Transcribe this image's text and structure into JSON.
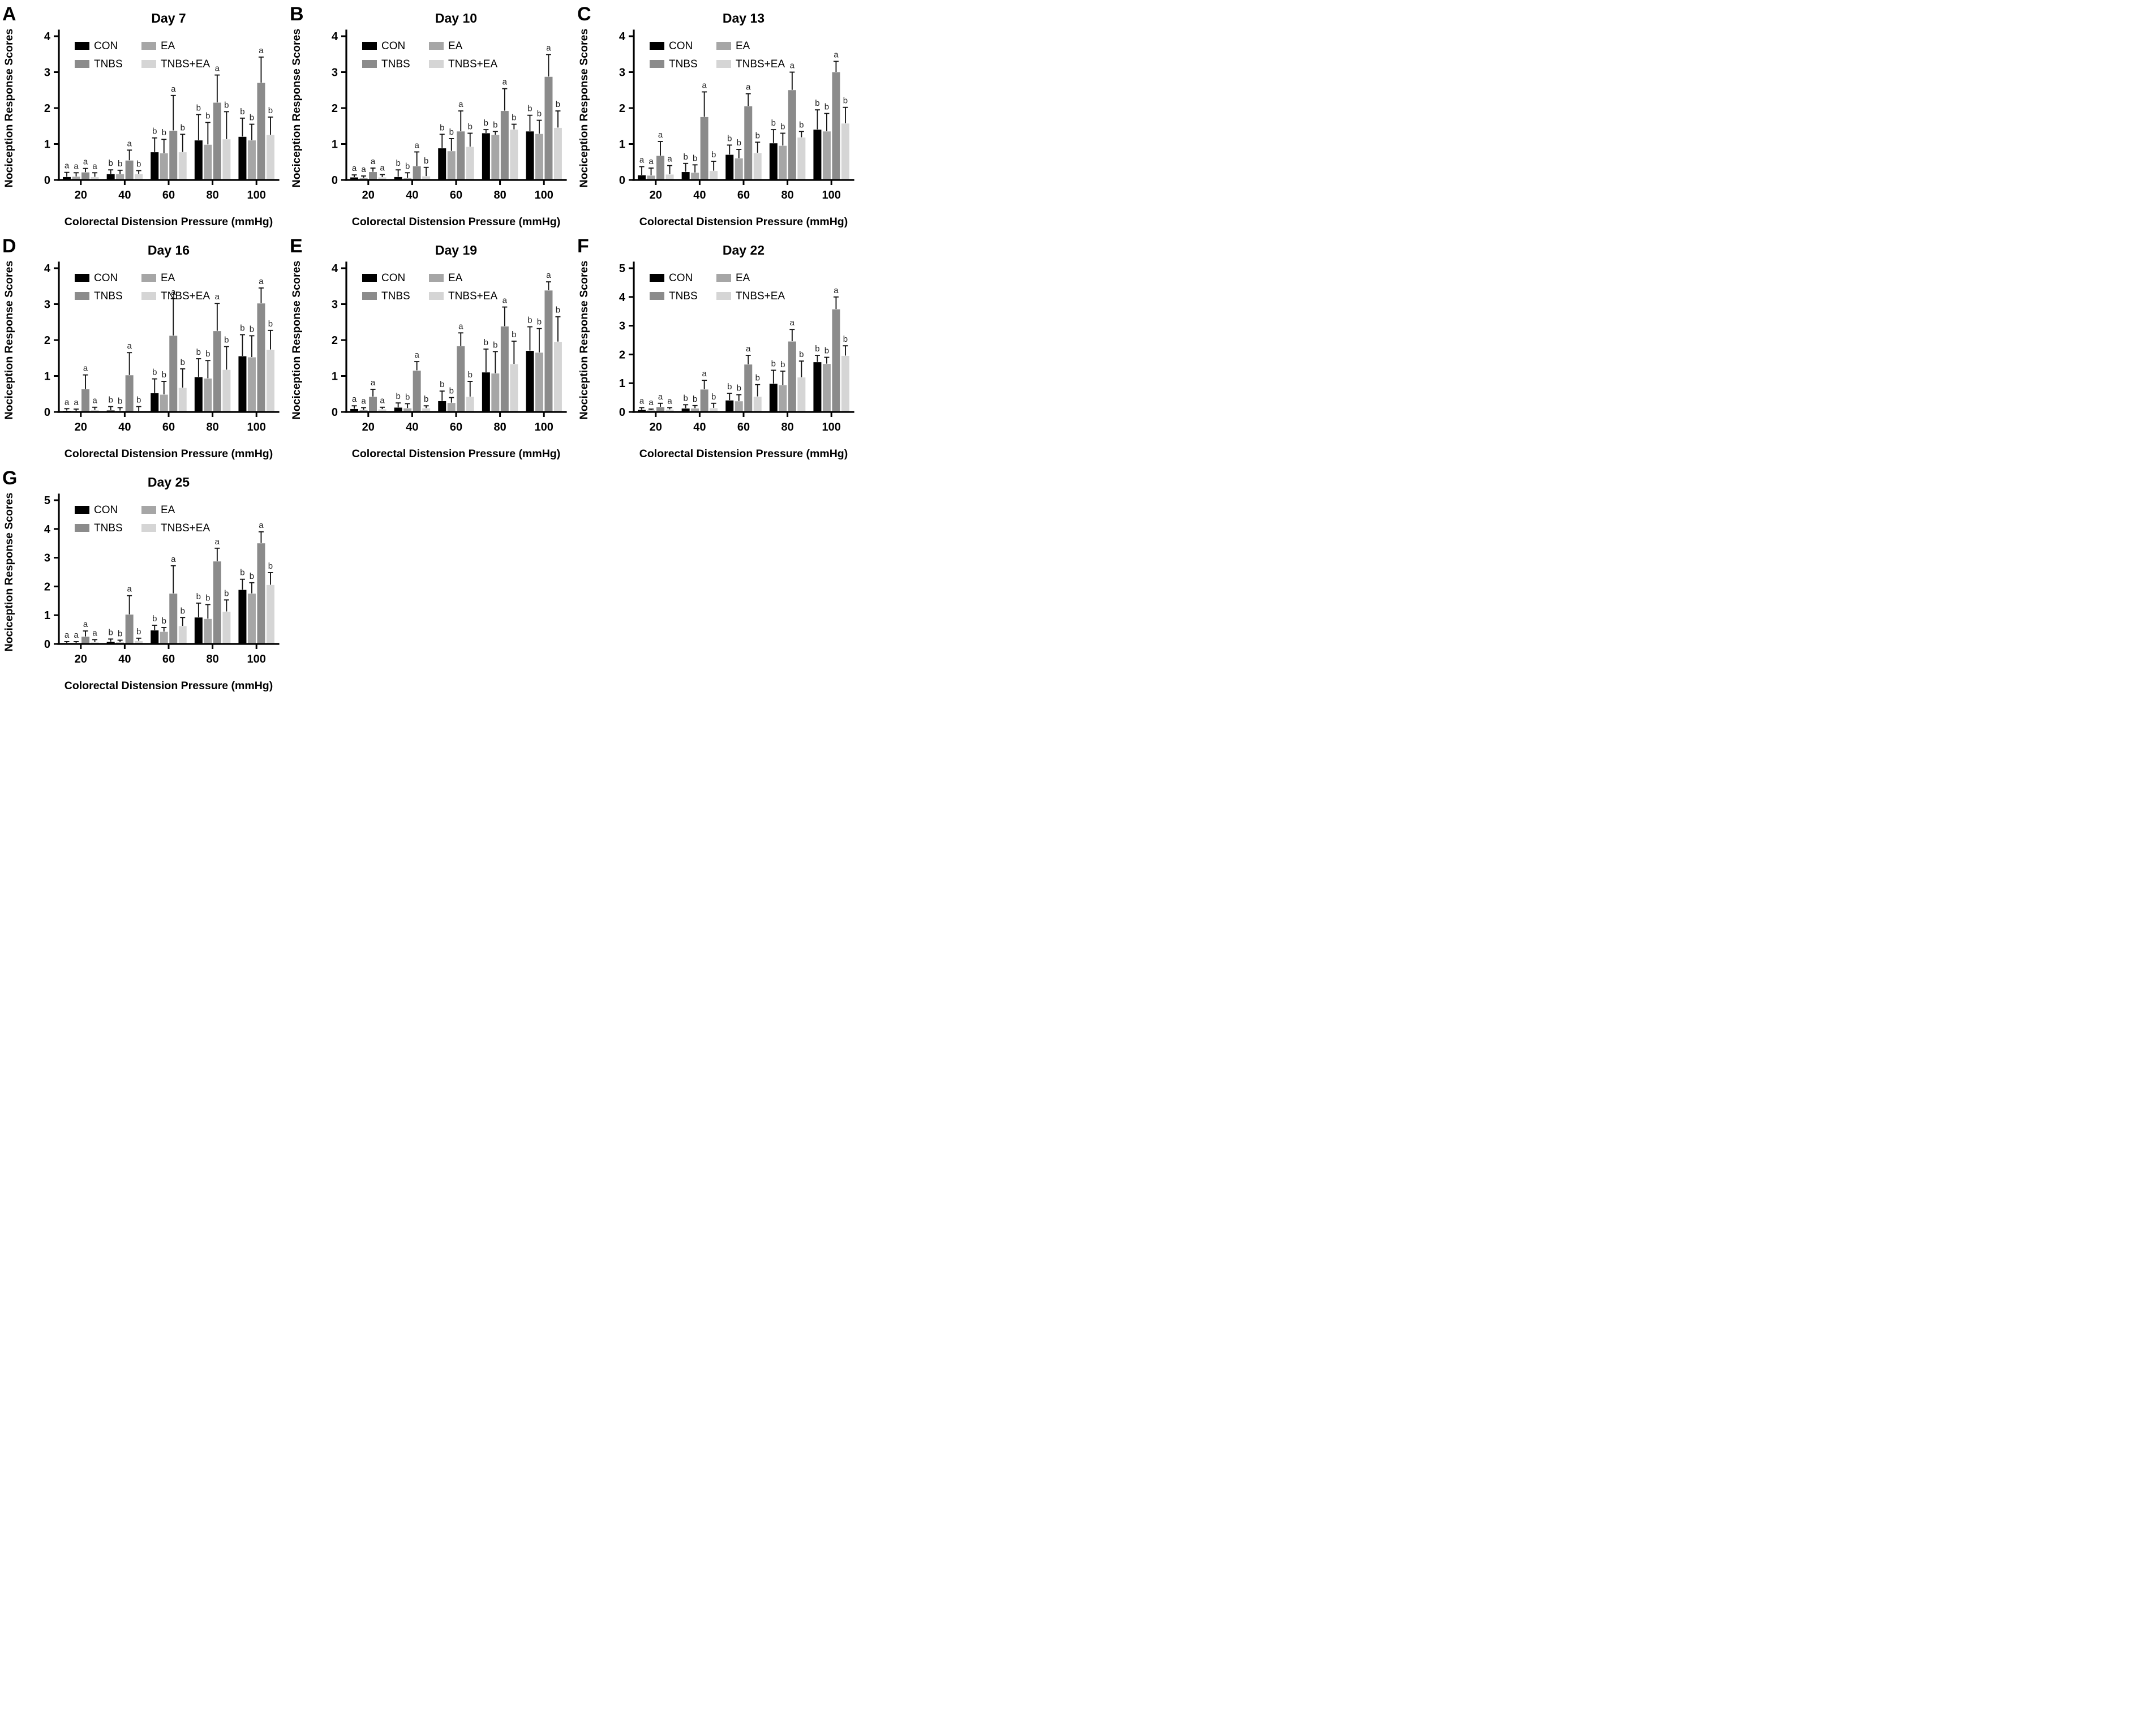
{
  "figure": {
    "ylabel": "Nociception Response Scores",
    "xlabel": "Colorectal Distension Pressure (mmHg)",
    "colors": {
      "CON": "#000000",
      "EA": "#a6a6a6",
      "TNBS": "#8b8b8b",
      "TNBS+EA": "#d5d5d5"
    },
    "legend_rows": [
      [
        "CON",
        "EA"
      ],
      [
        "TNBS",
        "TNBS+EA"
      ]
    ]
  },
  "chart_data": [
    {
      "type": "bar",
      "panel_label": "A",
      "title": "Day 7",
      "xlabel": "Colorectal Distension Pressure (mmHg)",
      "ylabel": "Nociception Response Scores",
      "categories": [
        20,
        40,
        60,
        80,
        100
      ],
      "ylim": [
        0,
        4
      ],
      "yticks": [
        0,
        1,
        2,
        3,
        4
      ],
      "grid": false,
      "legend_position": "top-left-inside",
      "series": [
        {
          "name": "CON",
          "values": [
            0.08,
            0.16,
            0.77,
            1.1,
            1.2
          ],
          "errors": [
            0.13,
            0.12,
            0.4,
            0.72,
            0.52
          ],
          "letters": [
            "a",
            "b",
            "b",
            "b",
            "b"
          ]
        },
        {
          "name": "EA",
          "values": [
            0.09,
            0.16,
            0.74,
            0.98,
            1.1
          ],
          "errors": [
            0.11,
            0.11,
            0.39,
            0.62,
            0.45
          ],
          "letters": [
            "a",
            "b",
            "b",
            "b",
            "b"
          ]
        },
        {
          "name": "TNBS",
          "values": [
            0.21,
            0.54,
            1.37,
            2.15,
            2.7
          ],
          "errors": [
            0.11,
            0.29,
            0.98,
            0.77,
            0.72
          ],
          "letters": [
            "a",
            "a",
            "a",
            "a",
            "a"
          ]
        },
        {
          "name": "TNBS+EA",
          "values": [
            0.08,
            0.16,
            0.77,
            1.13,
            1.25
          ],
          "errors": [
            0.12,
            0.1,
            0.5,
            0.77,
            0.5
          ],
          "letters": [
            "a",
            "b",
            "b",
            "b",
            "b"
          ]
        }
      ]
    },
    {
      "type": "bar",
      "panel_label": "B",
      "title": "Day 10",
      "xlabel": "Colorectal Distension Pressure (mmHg)",
      "ylabel": "Nociception Response Scores",
      "categories": [
        20,
        40,
        60,
        80,
        100
      ],
      "ylim": [
        0,
        4
      ],
      "yticks": [
        0,
        1,
        2,
        3,
        4
      ],
      "grid": false,
      "legend_position": "top-left-inside",
      "series": [
        {
          "name": "CON",
          "values": [
            0.07,
            0.08,
            0.88,
            1.3,
            1.35
          ],
          "errors": [
            0.07,
            0.2,
            0.39,
            0.1,
            0.45
          ],
          "letters": [
            "a",
            "b",
            "b",
            "b",
            "b"
          ]
        },
        {
          "name": "EA",
          "values": [
            0.05,
            0.05,
            0.8,
            1.25,
            1.28
          ],
          "errors": [
            0.06,
            0.15,
            0.35,
            0.1,
            0.38
          ],
          "letters": [
            "a",
            "b",
            "b",
            "b",
            "b"
          ]
        },
        {
          "name": "TNBS",
          "values": [
            0.22,
            0.38,
            1.35,
            1.92,
            2.87
          ],
          "errors": [
            0.11,
            0.4,
            0.57,
            0.62,
            0.62
          ],
          "letters": [
            "a",
            "a",
            "a",
            "a",
            "a"
          ]
        },
        {
          "name": "TNBS+EA",
          "values": [
            0.07,
            0.1,
            0.92,
            1.4,
            1.45
          ],
          "errors": [
            0.08,
            0.25,
            0.38,
            0.15,
            0.47
          ],
          "letters": [
            "a",
            "b",
            "b",
            "b",
            "b"
          ]
        }
      ]
    },
    {
      "type": "bar",
      "panel_label": "C",
      "title": "Day 13",
      "xlabel": "Colorectal Distension Pressure (mmHg)",
      "ylabel": "Nociception Response Scores",
      "categories": [
        20,
        40,
        60,
        80,
        100
      ],
      "ylim": [
        0,
        4
      ],
      "yticks": [
        0,
        1,
        2,
        3,
        4
      ],
      "grid": false,
      "legend_position": "top-left-inside",
      "series": [
        {
          "name": "CON",
          "values": [
            0.13,
            0.22,
            0.7,
            1.02,
            1.4
          ],
          "errors": [
            0.24,
            0.24,
            0.27,
            0.38,
            0.55
          ],
          "letters": [
            "a",
            "b",
            "b",
            "b",
            "b"
          ]
        },
        {
          "name": "EA",
          "values": [
            0.12,
            0.2,
            0.6,
            0.95,
            1.35
          ],
          "errors": [
            0.21,
            0.22,
            0.25,
            0.35,
            0.5
          ],
          "letters": [
            "a",
            "b",
            "b",
            "b",
            "b"
          ]
        },
        {
          "name": "TNBS",
          "values": [
            0.67,
            1.75,
            2.05,
            2.5,
            3.0
          ],
          "errors": [
            0.4,
            0.7,
            0.35,
            0.5,
            0.3
          ],
          "letters": [
            "a",
            "a",
            "a",
            "a",
            "a"
          ]
        },
        {
          "name": "TNBS+EA",
          "values": [
            0.15,
            0.25,
            0.75,
            1.18,
            1.57
          ],
          "errors": [
            0.25,
            0.27,
            0.3,
            0.17,
            0.45
          ],
          "letters": [
            "a",
            "b",
            "b",
            "b",
            "b"
          ]
        }
      ]
    },
    {
      "type": "bar",
      "panel_label": "D",
      "title": "Day 16",
      "xlabel": "Colorectal Distension Pressure (mmHg)",
      "ylabel": "Nociception Response Scores",
      "categories": [
        20,
        40,
        60,
        80,
        100
      ],
      "ylim": [
        0,
        4
      ],
      "yticks": [
        0,
        1,
        2,
        3,
        4
      ],
      "grid": false,
      "legend_position": "top-left-inside",
      "series": [
        {
          "name": "CON",
          "values": [
            0.03,
            0.04,
            0.52,
            0.97,
            1.55
          ],
          "errors": [
            0.06,
            0.11,
            0.4,
            0.51,
            0.6
          ],
          "letters": [
            "a",
            "b",
            "b",
            "b",
            "b"
          ]
        },
        {
          "name": "EA",
          "values": [
            0.02,
            0.03,
            0.48,
            0.93,
            1.52
          ],
          "errors": [
            0.06,
            0.09,
            0.37,
            0.5,
            0.6
          ],
          "letters": [
            "a",
            "b",
            "b",
            "b",
            "b"
          ]
        },
        {
          "name": "TNBS",
          "values": [
            0.63,
            1.02,
            2.12,
            2.25,
            3.02
          ],
          "errors": [
            0.4,
            0.63,
            1.03,
            0.77,
            0.43
          ],
          "letters": [
            "a",
            "a",
            "a",
            "a",
            "a"
          ]
        },
        {
          "name": "TNBS+EA",
          "values": [
            0.05,
            0.02,
            0.67,
            1.17,
            1.73
          ],
          "errors": [
            0.08,
            0.13,
            0.53,
            0.65,
            0.54
          ],
          "letters": [
            "a",
            "b",
            "b",
            "b",
            "b"
          ]
        }
      ]
    },
    {
      "type": "bar",
      "panel_label": "E",
      "title": "Day 19",
      "xlabel": "Colorectal Distension Pressure (mmHg)",
      "ylabel": "Nociception Response Scores",
      "categories": [
        20,
        40,
        60,
        80,
        100
      ],
      "ylim": [
        0,
        4
      ],
      "yticks": [
        0,
        1,
        2,
        3,
        4
      ],
      "grid": false,
      "legend_position": "top-left-inside",
      "series": [
        {
          "name": "CON",
          "values": [
            0.08,
            0.12,
            0.3,
            1.1,
            1.7
          ],
          "errors": [
            0.09,
            0.13,
            0.28,
            0.65,
            0.67
          ],
          "letters": [
            "a",
            "b",
            "b",
            "b",
            "b"
          ]
        },
        {
          "name": "EA",
          "values": [
            0.05,
            0.1,
            0.25,
            1.07,
            1.65
          ],
          "errors": [
            0.07,
            0.13,
            0.15,
            0.61,
            0.67
          ],
          "letters": [
            "a",
            "b",
            "b",
            "b",
            "b"
          ]
        },
        {
          "name": "TNBS",
          "values": [
            0.42,
            1.15,
            1.83,
            2.38,
            3.38
          ],
          "errors": [
            0.21,
            0.25,
            0.37,
            0.54,
            0.24
          ],
          "letters": [
            "a",
            "a",
            "a",
            "a",
            "a"
          ]
        },
        {
          "name": "TNBS+EA",
          "values": [
            0.07,
            0.1,
            0.42,
            1.33,
            1.95
          ],
          "errors": [
            0.06,
            0.07,
            0.43,
            0.64,
            0.7
          ],
          "letters": [
            "a",
            "b",
            "b",
            "b",
            "b"
          ]
        }
      ]
    },
    {
      "type": "bar",
      "panel_label": "F",
      "title": "Day 22",
      "xlabel": "Colorectal Distension Pressure (mmHg)",
      "ylabel": "Nociception Response Scores",
      "categories": [
        20,
        40,
        60,
        80,
        100
      ],
      "ylim": [
        0,
        5
      ],
      "yticks": [
        0,
        1,
        2,
        3,
        4,
        5
      ],
      "grid": false,
      "legend_position": "top-left-inside",
      "series": [
        {
          "name": "CON",
          "values": [
            0.07,
            0.12,
            0.4,
            0.98,
            1.73
          ],
          "errors": [
            0.08,
            0.13,
            0.25,
            0.47,
            0.24
          ],
          "letters": [
            "a",
            "b",
            "b",
            "b",
            "b"
          ]
        },
        {
          "name": "EA",
          "values": [
            0.05,
            0.12,
            0.37,
            0.93,
            1.67
          ],
          "errors": [
            0.05,
            0.1,
            0.23,
            0.49,
            0.23
          ],
          "letters": [
            "a",
            "b",
            "b",
            "b",
            "b"
          ]
        },
        {
          "name": "TNBS",
          "values": [
            0.17,
            0.78,
            1.65,
            2.45,
            3.57
          ],
          "errors": [
            0.13,
            0.32,
            0.32,
            0.42,
            0.43
          ],
          "letters": [
            "a",
            "a",
            "a",
            "a",
            "a"
          ]
        },
        {
          "name": "TNBS+EA",
          "values": [
            0.08,
            0.13,
            0.53,
            1.2,
            1.95
          ],
          "errors": [
            0.07,
            0.17,
            0.42,
            0.57,
            0.35
          ],
          "letters": [
            "a",
            "b",
            "b",
            "b",
            "b"
          ]
        }
      ]
    },
    {
      "type": "bar",
      "panel_label": "G",
      "title": "Day 25",
      "xlabel": "Colorectal Distension Pressure (mmHg)",
      "ylabel": "Nociception Response Scores",
      "categories": [
        20,
        40,
        60,
        80,
        100
      ],
      "ylim": [
        0,
        5
      ],
      "yticks": [
        0,
        1,
        2,
        3,
        4,
        5
      ],
      "grid": false,
      "legend_position": "top-left-inside",
      "series": [
        {
          "name": "CON",
          "values": [
            0.03,
            0.07,
            0.47,
            0.92,
            1.88
          ],
          "errors": [
            0.05,
            0.1,
            0.18,
            0.5,
            0.37
          ],
          "letters": [
            "a",
            "b",
            "b",
            "b",
            "b"
          ]
        },
        {
          "name": "EA",
          "values": [
            0.03,
            0.05,
            0.42,
            0.87,
            1.75
          ],
          "errors": [
            0.05,
            0.08,
            0.15,
            0.5,
            0.38
          ],
          "letters": [
            "a",
            "b",
            "b",
            "b",
            "b"
          ]
        },
        {
          "name": "TNBS",
          "values": [
            0.25,
            1.02,
            1.75,
            2.87,
            3.5
          ],
          "errors": [
            0.2,
            0.66,
            0.97,
            0.46,
            0.4
          ],
          "letters": [
            "a",
            "a",
            "a",
            "a",
            "a"
          ]
        },
        {
          "name": "TNBS+EA",
          "values": [
            0.05,
            0.1,
            0.62,
            1.12,
            2.05
          ],
          "errors": [
            0.1,
            0.1,
            0.3,
            0.41,
            0.43
          ],
          "letters": [
            "a",
            "b",
            "b",
            "b",
            "b"
          ]
        }
      ]
    }
  ]
}
